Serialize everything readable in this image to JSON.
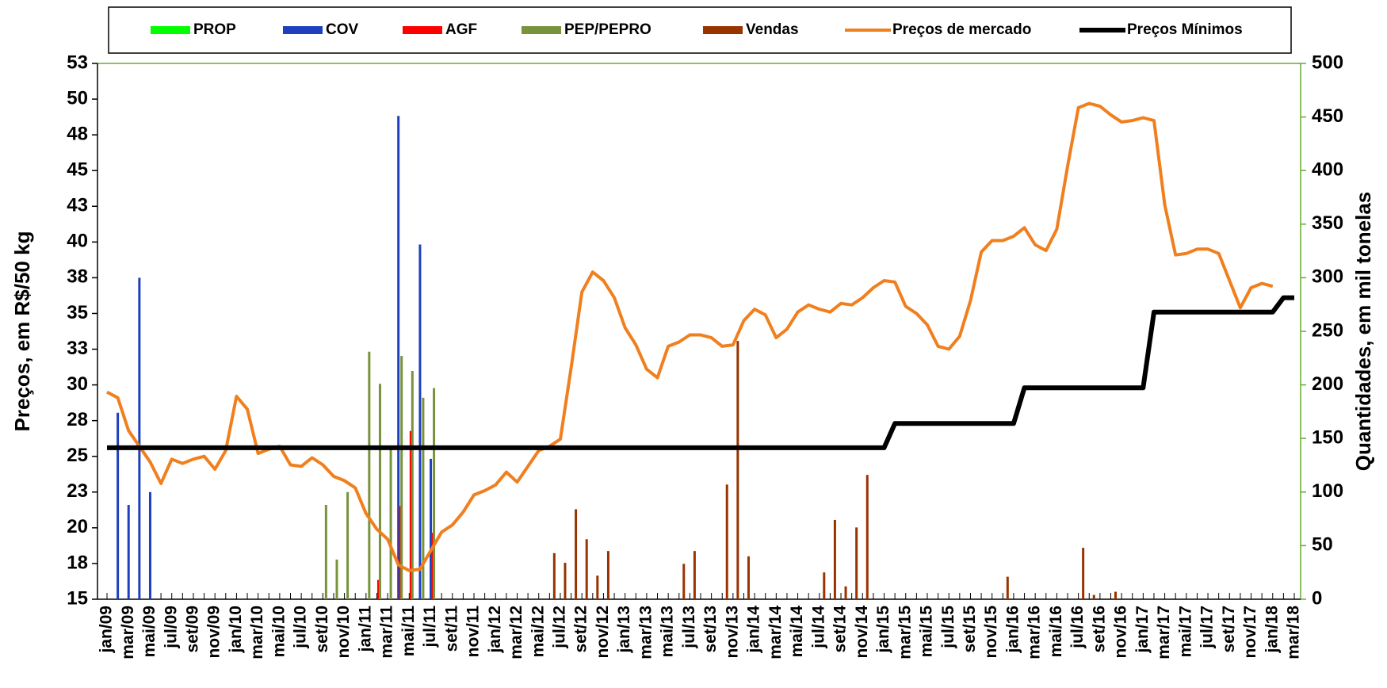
{
  "chart_data": {
    "type": "bar",
    "y_label": "Preços, em R$/50 kg",
    "y2_label": "Quantidades, em mil tonelas",
    "legend": "top",
    "categories": [
      "jan/09",
      null,
      "mar/09",
      null,
      "mai/09",
      null,
      "jul/09",
      null,
      "set/09",
      null,
      "nov/09",
      null,
      "jan/10",
      null,
      "mar/10",
      null,
      "mai/10",
      null,
      "jul/10",
      null,
      "set/10",
      null,
      "nov/10",
      null,
      "jan/11",
      null,
      "mar/11",
      null,
      "mai/11",
      null,
      "jul/11",
      null,
      "set/11",
      null,
      "nov/11",
      null,
      "jan/12",
      null,
      "mar/12",
      null,
      "mai/12",
      null,
      "jul/12",
      null,
      "set/12",
      null,
      "nov/12",
      null,
      "jan/13",
      null,
      "mar/13",
      null,
      "mai/13",
      null,
      "jul/13",
      null,
      "set/13",
      null,
      "nov/13",
      null,
      "jan/14",
      null,
      "mar/14",
      null,
      "mai/14",
      null,
      "jul/14",
      null,
      "set/14",
      null,
      "nov/14",
      null,
      "jan/15",
      null,
      "mar/15",
      null,
      "mai/15",
      null,
      "jul/15",
      null,
      "set/15",
      null,
      "nov/15",
      null,
      "jan/16",
      null,
      "mar/16",
      null,
      "mai/16",
      null,
      "jul/16",
      null,
      "set/16",
      null,
      "nov/16",
      null,
      "jan/17",
      null,
      "mar/17",
      null,
      "mai/17",
      null,
      "jul/17",
      null,
      "set/17",
      null,
      "nov/17",
      null,
      "jan/18",
      null,
      "mar/18"
    ],
    "ylim": [
      15,
      52.5
    ],
    "yticks": [
      15,
      {
        "value": 17.5,
        "label": "18"
      },
      20,
      {
        "value": 22.5,
        "label": "23"
      },
      25,
      {
        "value": 27.5,
        "label": "28"
      },
      30,
      {
        "value": 32.5,
        "label": "33"
      },
      35,
      {
        "value": 37.5,
        "label": "38"
      },
      40,
      {
        "value": 42.5,
        "label": "43"
      },
      45,
      {
        "value": 47.5,
        "label": "48"
      },
      50,
      {
        "value": 52.5,
        "label": "53"
      }
    ],
    "y2lim": [
      0,
      500
    ],
    "y2ticks": [
      0,
      50,
      100,
      150,
      200,
      250,
      300,
      350,
      400,
      450,
      500
    ],
    "series": [
      {
        "name": "PROP",
        "type": "bar",
        "axis": "y2",
        "color": "#00ff00",
        "values": [
          null,
          null,
          null,
          null,
          null,
          null,
          null,
          null,
          null,
          null,
          null,
          null,
          null,
          null,
          null,
          null,
          null,
          null,
          null,
          null,
          null,
          null,
          null,
          null,
          null,
          null,
          null,
          null,
          null,
          null,
          null,
          null,
          null,
          null,
          null,
          null,
          null,
          null,
          null,
          null,
          null,
          null,
          null,
          null,
          null,
          null,
          null,
          null,
          null,
          null,
          null,
          null,
          null,
          null,
          null,
          null,
          null,
          null,
          null,
          null,
          null,
          null,
          null,
          null,
          null,
          null,
          null,
          null,
          null,
          null,
          null,
          null,
          null,
          null,
          null,
          null,
          null,
          null,
          null,
          null,
          null,
          null,
          null,
          null,
          null,
          null,
          null,
          null,
          null,
          null,
          null,
          null,
          null,
          null,
          null,
          null,
          null,
          null,
          null,
          null,
          null,
          null,
          null,
          null,
          null,
          null,
          null,
          null,
          null,
          null,
          null
        ]
      },
      {
        "name": "COV",
        "type": "bar",
        "axis": "y2",
        "color": "#1f3fbf",
        "values": [
          null,
          174,
          88,
          300,
          100,
          null,
          null,
          null,
          null,
          null,
          null,
          null,
          null,
          null,
          null,
          null,
          null,
          null,
          null,
          null,
          null,
          null,
          null,
          null,
          null,
          null,
          null,
          451,
          null,
          331,
          131,
          null,
          null,
          null,
          null,
          null,
          null,
          null,
          null,
          null,
          null,
          null,
          null,
          null,
          null,
          null,
          null,
          null,
          null,
          null,
          null,
          null,
          null,
          null,
          null,
          null,
          null,
          null,
          null,
          null,
          null,
          null,
          null,
          null,
          null,
          null,
          null,
          null,
          null,
          null,
          null,
          null,
          null,
          null,
          null,
          null,
          null,
          null,
          null,
          null,
          null,
          null,
          null,
          null,
          null,
          null,
          null,
          null,
          null,
          null,
          null,
          null,
          null,
          null,
          null,
          null,
          null,
          null,
          null,
          null,
          null,
          null,
          null,
          null,
          null,
          null,
          null,
          null,
          null,
          null,
          null
        ]
      },
      {
        "name": "AGF",
        "type": "bar",
        "axis": "y2",
        "color": "#ff0000",
        "values": [
          null,
          null,
          null,
          null,
          null,
          null,
          null,
          null,
          null,
          null,
          null,
          null,
          null,
          null,
          null,
          null,
          null,
          null,
          null,
          null,
          null,
          null,
          null,
          null,
          null,
          18,
          null,
          87,
          157,
          null,
          62,
          null,
          null,
          null,
          null,
          null,
          null,
          null,
          null,
          null,
          null,
          null,
          null,
          null,
          null,
          null,
          null,
          null,
          null,
          null,
          null,
          null,
          null,
          null,
          null,
          null,
          null,
          null,
          null,
          null,
          null,
          null,
          null,
          null,
          null,
          null,
          null,
          null,
          null,
          null,
          null,
          null,
          null,
          null,
          null,
          null,
          null,
          null,
          null,
          null,
          null,
          null,
          null,
          null,
          null,
          null,
          null,
          null,
          null,
          null,
          null,
          null,
          null,
          null,
          null,
          null,
          null,
          null,
          null,
          null,
          null,
          null,
          null,
          null,
          null,
          null,
          null,
          null,
          null,
          null,
          null
        ]
      },
      {
        "name": "PEP/PEPRO",
        "type": "bar",
        "axis": "y2",
        "color": "#77933c",
        "values": [
          null,
          null,
          null,
          null,
          null,
          null,
          null,
          null,
          null,
          null,
          null,
          null,
          null,
          null,
          null,
          null,
          null,
          null,
          null,
          null,
          88,
          37,
          100,
          null,
          231,
          201,
          142,
          227,
          213,
          188,
          197,
          null,
          null,
          null,
          null,
          null,
          null,
          null,
          null,
          null,
          null,
          null,
          null,
          null,
          null,
          null,
          null,
          null,
          null,
          null,
          null,
          null,
          null,
          null,
          null,
          null,
          null,
          null,
          null,
          null,
          null,
          null,
          null,
          null,
          null,
          null,
          null,
          null,
          null,
          null,
          null,
          null,
          null,
          null,
          null,
          null,
          null,
          null,
          null,
          null,
          null,
          null,
          null,
          null,
          null,
          null,
          null,
          null,
          null,
          null,
          null,
          null,
          null,
          null,
          null,
          null,
          null,
          null,
          null,
          null,
          null,
          null,
          null,
          null,
          null,
          null,
          null,
          null,
          null,
          null,
          null
        ]
      },
      {
        "name": "Vendas",
        "type": "bar",
        "axis": "y2",
        "color": "#993300",
        "values": [
          null,
          null,
          null,
          null,
          null,
          null,
          null,
          null,
          null,
          null,
          null,
          null,
          null,
          null,
          null,
          null,
          null,
          null,
          null,
          null,
          null,
          null,
          null,
          null,
          null,
          null,
          null,
          null,
          null,
          null,
          null,
          null,
          null,
          null,
          null,
          null,
          null,
          null,
          null,
          null,
          null,
          43,
          34,
          84,
          56,
          22,
          45,
          null,
          null,
          null,
          null,
          null,
          null,
          33,
          45,
          null,
          null,
          107,
          241,
          40,
          null,
          null,
          null,
          null,
          null,
          null,
          25,
          74,
          12,
          67,
          116,
          null,
          null,
          null,
          null,
          null,
          null,
          null,
          null,
          null,
          null,
          null,
          null,
          21,
          null,
          null,
          null,
          null,
          null,
          null,
          48,
          4,
          null,
          7,
          null,
          null,
          null,
          null,
          null,
          null,
          null,
          null,
          null,
          null,
          null,
          null,
          null,
          null,
          null,
          null,
          null
        ]
      },
      {
        "name": "Preços de mercado",
        "type": "line",
        "color": "#f07f1e",
        "values": [
          29.5,
          29.1,
          26.8,
          25.7,
          24.6,
          23.1,
          24.8,
          24.5,
          24.8,
          25.0,
          24.1,
          25.4,
          29.2,
          28.3,
          25.2,
          25.5,
          25.7,
          24.4,
          24.3,
          24.9,
          24.4,
          23.6,
          23.3,
          22.8,
          21.0,
          19.9,
          19.2,
          17.4,
          17.0,
          17.1,
          18.4,
          19.7,
          20.2,
          21.1,
          22.3,
          22.6,
          23.0,
          23.9,
          23.2,
          24.3,
          25.4,
          25.7,
          26.2,
          31.2,
          36.5,
          37.9,
          37.3,
          36.1,
          34.0,
          32.8,
          31.1,
          30.5,
          32.7,
          33.0,
          33.5,
          33.5,
          33.3,
          32.7,
          32.8,
          34.5,
          35.3,
          34.9,
          33.3,
          33.9,
          35.1,
          35.6,
          35.3,
          35.1,
          35.7,
          35.6,
          36.1,
          36.8,
          37.3,
          37.2,
          35.5,
          35.0,
          34.2,
          32.7,
          32.5,
          33.4,
          35.9,
          39.3,
          40.1,
          40.1,
          40.4,
          41.0,
          39.8,
          39.4,
          40.9,
          45.3,
          49.4,
          49.7,
          49.5,
          48.9,
          48.4,
          48.5,
          48.7,
          48.5,
          42.6,
          39.1,
          39.2,
          39.5,
          39.5,
          39.2,
          37.3,
          35.4,
          36.8,
          37.1,
          36.9,
          null,
          null
        ]
      },
      {
        "name": "Preços Mínimos",
        "type": "line",
        "color": "#000000",
        "values": [
          25.6,
          25.6,
          25.6,
          25.6,
          25.6,
          25.6,
          25.6,
          25.6,
          25.6,
          25.6,
          25.6,
          25.6,
          25.6,
          25.6,
          25.6,
          25.6,
          25.6,
          25.6,
          25.6,
          25.6,
          25.6,
          25.6,
          25.6,
          25.6,
          25.6,
          25.6,
          25.6,
          25.6,
          25.6,
          25.6,
          25.6,
          25.6,
          25.6,
          25.6,
          25.6,
          25.6,
          25.6,
          25.6,
          25.6,
          25.6,
          25.6,
          25.6,
          25.6,
          25.6,
          25.6,
          25.6,
          25.6,
          25.6,
          25.6,
          25.6,
          25.6,
          25.6,
          25.6,
          25.6,
          25.6,
          25.6,
          25.6,
          25.6,
          25.6,
          25.6,
          25.6,
          25.6,
          25.6,
          25.6,
          25.6,
          25.6,
          25.6,
          25.6,
          25.6,
          25.6,
          25.6,
          25.6,
          25.6,
          27.3,
          27.3,
          27.3,
          27.3,
          27.3,
          27.3,
          27.3,
          27.3,
          27.3,
          27.3,
          27.3,
          27.3,
          29.8,
          29.8,
          29.8,
          29.8,
          29.8,
          29.8,
          29.8,
          29.8,
          29.8,
          29.8,
          29.8,
          29.8,
          35.1,
          35.1,
          35.1,
          35.1,
          35.1,
          35.1,
          35.1,
          35.1,
          35.1,
          35.1,
          35.1,
          35.1,
          36.1,
          36.1
        ]
      }
    ]
  }
}
